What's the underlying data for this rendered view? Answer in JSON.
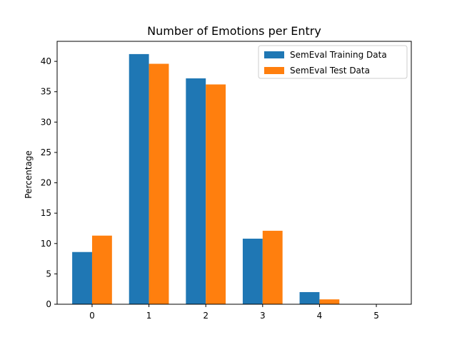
{
  "chart_data": {
    "type": "bar",
    "title": "Number of Emotions per Entry",
    "xlabel": "",
    "ylabel": "Percentage",
    "categories": [
      "0",
      "1",
      "2",
      "3",
      "4",
      "5"
    ],
    "series": [
      {
        "name": "SemEval Training Data",
        "color": "#1f77b4",
        "values": [
          8.6,
          41.2,
          37.2,
          10.8,
          2.0,
          0.05
        ]
      },
      {
        "name": "SemEval Test Data",
        "color": "#ff7f0e",
        "values": [
          11.3,
          39.6,
          36.2,
          12.1,
          0.8,
          0.0
        ]
      }
    ],
    "ylim": [
      0,
      43.3
    ],
    "yticks": [
      "0",
      "5",
      "10",
      "15",
      "20",
      "25",
      "30",
      "35",
      "40"
    ],
    "legend": {
      "placement": "top-right"
    },
    "grid": false
  }
}
